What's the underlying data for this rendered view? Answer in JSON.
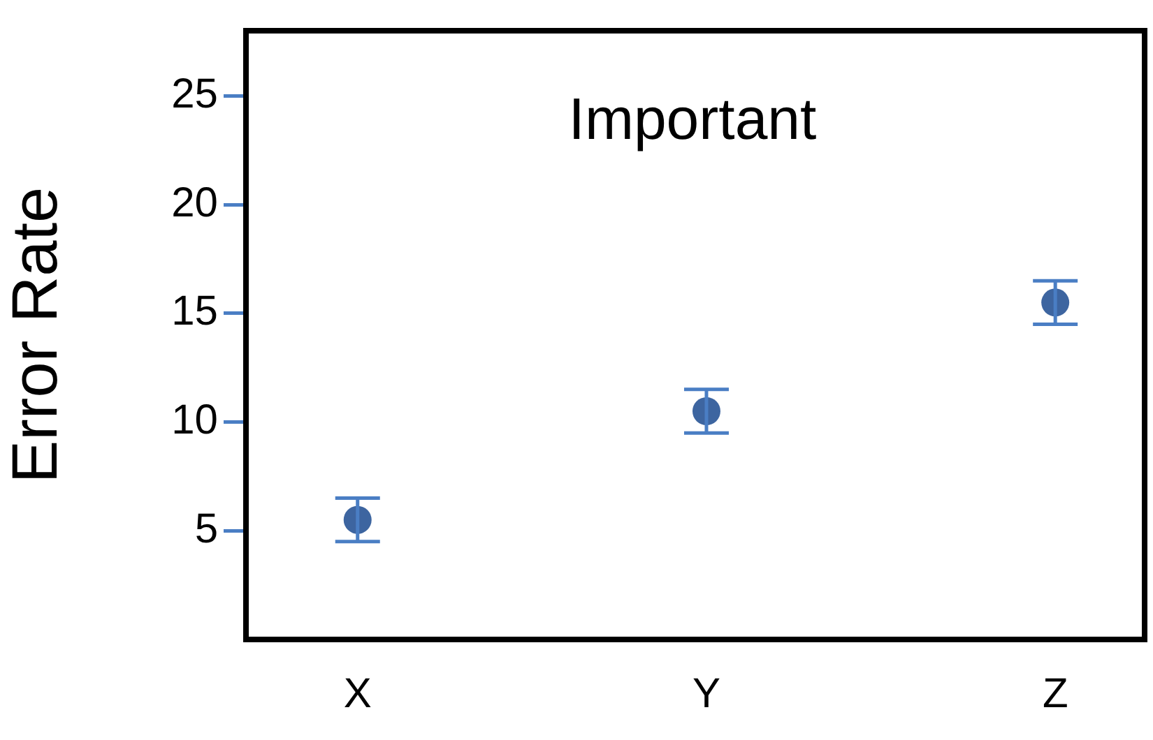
{
  "chart_data": {
    "type": "scatter",
    "title": "Important",
    "ylabel": "Error Rate",
    "categories": [
      "X",
      "Y",
      "Z"
    ],
    "series": [
      {
        "color": "#3d65a0",
        "values": [
          5.5,
          10.5,
          15.5
        ],
        "errors": [
          1,
          1,
          1
        ]
      }
    ],
    "ylim": [
      0,
      28
    ],
    "yticks": [
      5,
      10,
      15,
      20,
      25
    ],
    "grid": false,
    "legend": false,
    "marker": "circle"
  }
}
